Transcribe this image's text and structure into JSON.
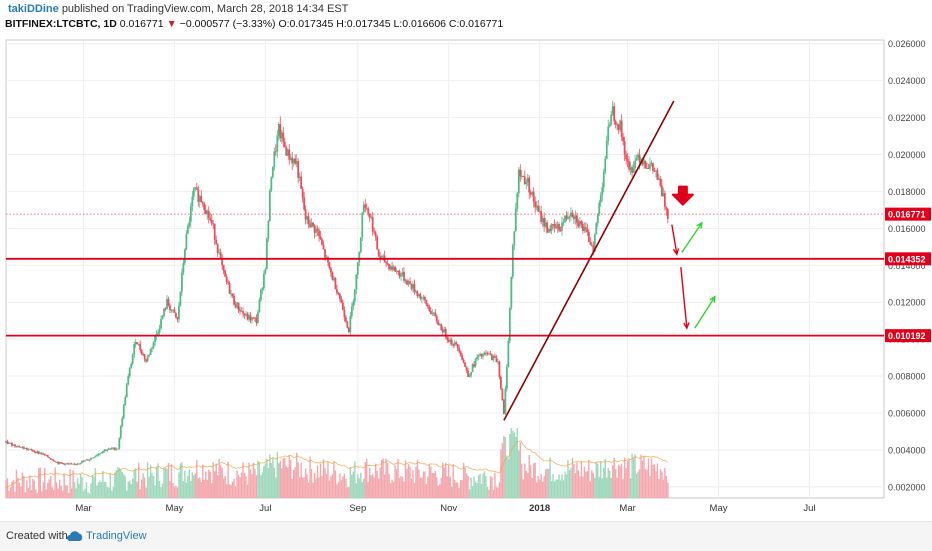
{
  "header": {
    "author": "takiDDine",
    "published": "published on TradingView.com, March 28, 2018 14:34 EST",
    "symbol": "BITFINEX:LTCBTC, 1D",
    "last": "0.016771",
    "change_arrow": "▼",
    "change": "−0.000577 (−3.33%)",
    "ohlc": "O:0.017345 H:0.017345 L:0.016606 C:0.016771"
  },
  "footer": {
    "created_with": "Created with",
    "brand": "TradingView",
    "logo_icon": "tradingview-cloud-icon"
  },
  "colors": {
    "up": "#53b987",
    "down": "#eb4d5c",
    "level": "#e0001a",
    "trend": "#8b0000",
    "arrow": "#e0001a",
    "target": "#2fd12f",
    "volume_ma": "#f0a040"
  },
  "chart_data": {
    "type": "candlestick",
    "scale": "linear",
    "ylim": [
      0.0014,
      0.0262
    ],
    "y_ticks": [
      "0.002000",
      "0.004000",
      "0.006000",
      "0.008000",
      "0.010000",
      "0.012000",
      "0.014000",
      "0.016000",
      "0.018000",
      "0.020000",
      "0.022000",
      "0.024000",
      "0.026000"
    ],
    "x_ticks": [
      "Mar",
      "May",
      "Jul",
      "Sep",
      "Nov",
      "2018",
      "Mar",
      "May",
      "Jul"
    ],
    "x_tick_dates": [
      "2017-03-01",
      "2017-05-01",
      "2017-07-01",
      "2017-09-01",
      "2017-11-01",
      "2018-01-01",
      "2018-03-01",
      "2018-05-01",
      "2018-07-01"
    ],
    "x_range": [
      "2017-01-08",
      "2018-08-20"
    ],
    "price_labels": [
      "0.016771",
      "0.014352",
      "0.010192"
    ],
    "horizontal_levels": [
      0.014352,
      0.010192
    ],
    "last_price": 0.016771,
    "trendline": {
      "start": [
        "2017-12-08",
        0.0056
      ],
      "end": [
        "2018-04-01",
        0.0229
      ]
    },
    "grid": true,
    "close_series": [
      [
        "2017-01-08",
        0.0044
      ],
      [
        "2017-01-20",
        0.0041
      ],
      [
        "2017-02-01",
        0.0038
      ],
      [
        "2017-02-12",
        0.0033
      ],
      [
        "2017-02-22",
        0.0032
      ],
      [
        "2017-03-05",
        0.0035
      ],
      [
        "2017-03-15",
        0.004
      ],
      [
        "2017-03-24",
        0.0041
      ],
      [
        "2017-03-30",
        0.0075
      ],
      [
        "2017-04-05",
        0.01
      ],
      [
        "2017-04-12",
        0.0088
      ],
      [
        "2017-04-20",
        0.0105
      ],
      [
        "2017-04-26",
        0.012
      ],
      [
        "2017-05-03",
        0.011
      ],
      [
        "2017-05-08",
        0.015
      ],
      [
        "2017-05-14",
        0.018
      ],
      [
        "2017-05-20",
        0.0175
      ],
      [
        "2017-05-27",
        0.016
      ],
      [
        "2017-06-03",
        0.0135
      ],
      [
        "2017-06-10",
        0.012
      ],
      [
        "2017-06-18",
        0.0112
      ],
      [
        "2017-06-25",
        0.011
      ],
      [
        "2017-07-01",
        0.014
      ],
      [
        "2017-07-05",
        0.019
      ],
      [
        "2017-07-10",
        0.0213
      ],
      [
        "2017-07-16",
        0.02
      ],
      [
        "2017-07-22",
        0.0195
      ],
      [
        "2017-07-28",
        0.0165
      ],
      [
        "2017-08-05",
        0.0158
      ],
      [
        "2017-08-12",
        0.014
      ],
      [
        "2017-08-19",
        0.0125
      ],
      [
        "2017-08-26",
        0.0105
      ],
      [
        "2017-09-01",
        0.014
      ],
      [
        "2017-09-05",
        0.0175
      ],
      [
        "2017-09-10",
        0.0165
      ],
      [
        "2017-09-15",
        0.0145
      ],
      [
        "2017-09-22",
        0.014
      ],
      [
        "2017-09-30",
        0.0135
      ],
      [
        "2017-10-08",
        0.0128
      ],
      [
        "2017-10-16",
        0.012
      ],
      [
        "2017-10-24",
        0.011
      ],
      [
        "2017-11-01",
        0.01
      ],
      [
        "2017-11-08",
        0.0095
      ],
      [
        "2017-11-14",
        0.008
      ],
      [
        "2017-11-20",
        0.009
      ],
      [
        "2017-11-27",
        0.0092
      ],
      [
        "2017-12-04",
        0.0088
      ],
      [
        "2017-12-08",
        0.0059
      ],
      [
        "2017-12-11",
        0.01
      ],
      [
        "2017-12-14",
        0.015
      ],
      [
        "2017-12-18",
        0.019
      ],
      [
        "2017-12-24",
        0.0185
      ],
      [
        "2017-12-30",
        0.017
      ],
      [
        "2018-01-06",
        0.016
      ],
      [
        "2018-01-14",
        0.016
      ],
      [
        "2018-01-22",
        0.017
      ],
      [
        "2018-01-30",
        0.016
      ],
      [
        "2018-02-06",
        0.015
      ],
      [
        "2018-02-12",
        0.0185
      ],
      [
        "2018-02-18",
        0.0225
      ],
      [
        "2018-02-24",
        0.0215
      ],
      [
        "2018-03-02",
        0.019
      ],
      [
        "2018-03-08",
        0.02
      ],
      [
        "2018-03-14",
        0.0195
      ],
      [
        "2018-03-20",
        0.019
      ],
      [
        "2018-03-28",
        0.0168
      ]
    ]
  }
}
